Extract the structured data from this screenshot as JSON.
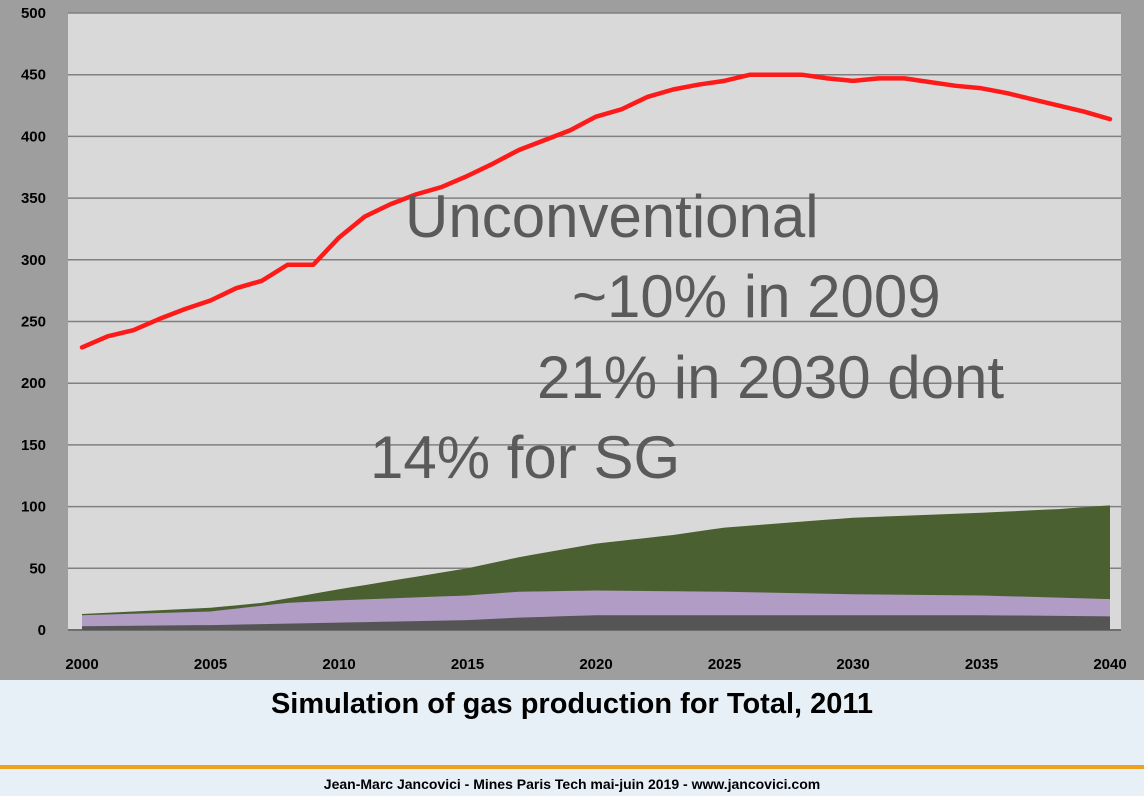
{
  "chart_data": {
    "type": "area",
    "xlim": [
      2000,
      2040
    ],
    "ylim": [
      0,
      500
    ],
    "y_ticks": [
      0,
      50,
      100,
      150,
      200,
      250,
      300,
      350,
      400,
      450,
      500
    ],
    "x_ticks": [
      2000,
      2005,
      2010,
      2015,
      2020,
      2025,
      2030,
      2035,
      2040
    ],
    "grid": true,
    "stacked_areas": [
      {
        "color": "#555555",
        "x": [
          2000,
          2005,
          2010,
          2015,
          2017,
          2020,
          2025,
          2030,
          2035,
          2040
        ],
        "y": [
          3,
          4,
          6,
          8,
          10,
          12,
          12,
          12,
          12,
          11
        ]
      },
      {
        "color": "#b09cc4",
        "x": [
          2000,
          2005,
          2008,
          2010,
          2015,
          2017,
          2020,
          2025,
          2030,
          2035,
          2040
        ],
        "y": [
          12,
          15,
          22,
          24,
          28,
          31,
          32,
          31,
          29,
          28,
          25
        ]
      },
      {
        "color": "#4a6030",
        "x": [
          2000,
          2005,
          2007,
          2010,
          2015,
          2017,
          2020,
          2023,
          2025,
          2030,
          2035,
          2038,
          2040
        ],
        "y": [
          13,
          18,
          22,
          33,
          50,
          59,
          70,
          77,
          83,
          91,
          95,
          98,
          101
        ]
      }
    ],
    "line_series": {
      "color": "#ff1a1a",
      "x": [
        2000,
        2001,
        2002,
        2003,
        2004,
        2005,
        2006,
        2007,
        2008,
        2009,
        2010,
        2011,
        2012,
        2013,
        2014,
        2015,
        2016,
        2017,
        2018,
        2019,
        2020,
        2021,
        2022,
        2023,
        2024,
        2025,
        2026,
        2027,
        2028,
        2029,
        2030,
        2031,
        2032,
        2033,
        2034,
        2035,
        2036,
        2037,
        2038,
        2039,
        2040
      ],
      "y": [
        229,
        238,
        243,
        252,
        260,
        267,
        277,
        283,
        296,
        296,
        318,
        335,
        345,
        353,
        359,
        368,
        378,
        389,
        397,
        405,
        416,
        422,
        432,
        438,
        442,
        445,
        450,
        450,
        450,
        447,
        445,
        447,
        447,
        444,
        441,
        439,
        435,
        430,
        425,
        420,
        414
      ]
    },
    "annotations": [
      "Unconventional",
      "~10% in 2009",
      "21% in 2030 dont",
      "14% for SG"
    ]
  },
  "caption": "Simulation of gas production for Total, 2011",
  "footer": "Jean-Marc Jancovici - Mines Paris Tech mai-juin 2019 - www.jancovici.com",
  "colors": {
    "plot_background": "#d9d9d9",
    "outer_background": "#9e9e9e",
    "gridline": "#808080",
    "caption_background": "#e8f0f7",
    "divider": "#f0a020"
  }
}
